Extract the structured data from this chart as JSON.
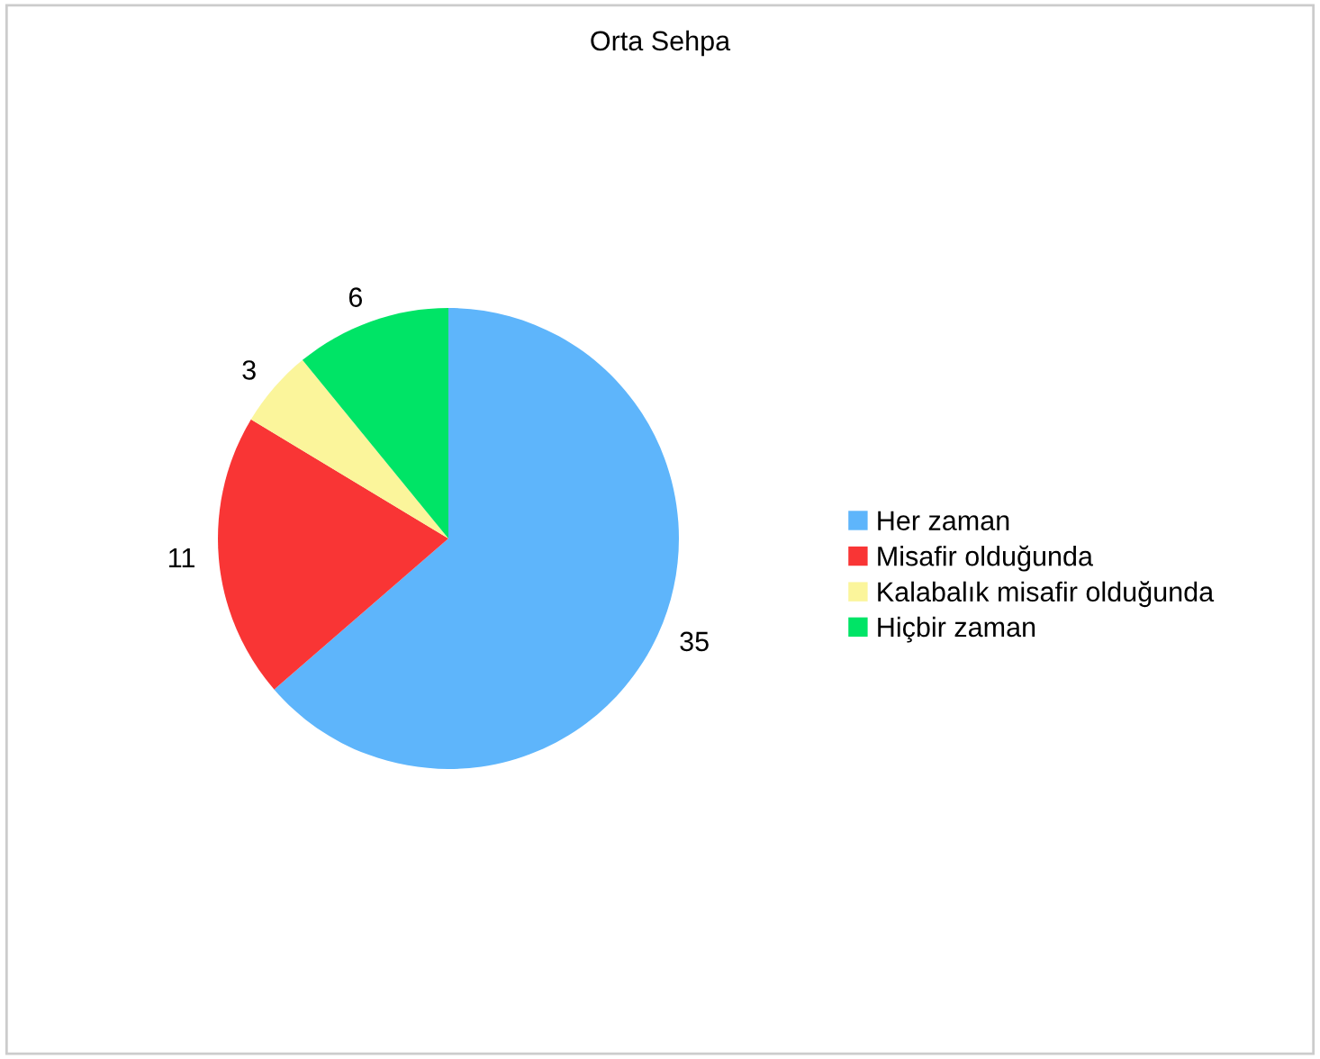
{
  "chart_data": {
    "type": "pie",
    "title": "Orta Sehpa",
    "categories": [
      "Her zaman",
      "Misafir olduğunda",
      "Kalabalık misafir olduğunda",
      "Hiçbir zaman"
    ],
    "values": [
      35,
      11,
      3,
      6
    ],
    "colors": [
      "#5eb5fb",
      "#f93535",
      "#fbf59b",
      "#00e466"
    ],
    "data_labels": true,
    "legend": "right"
  }
}
